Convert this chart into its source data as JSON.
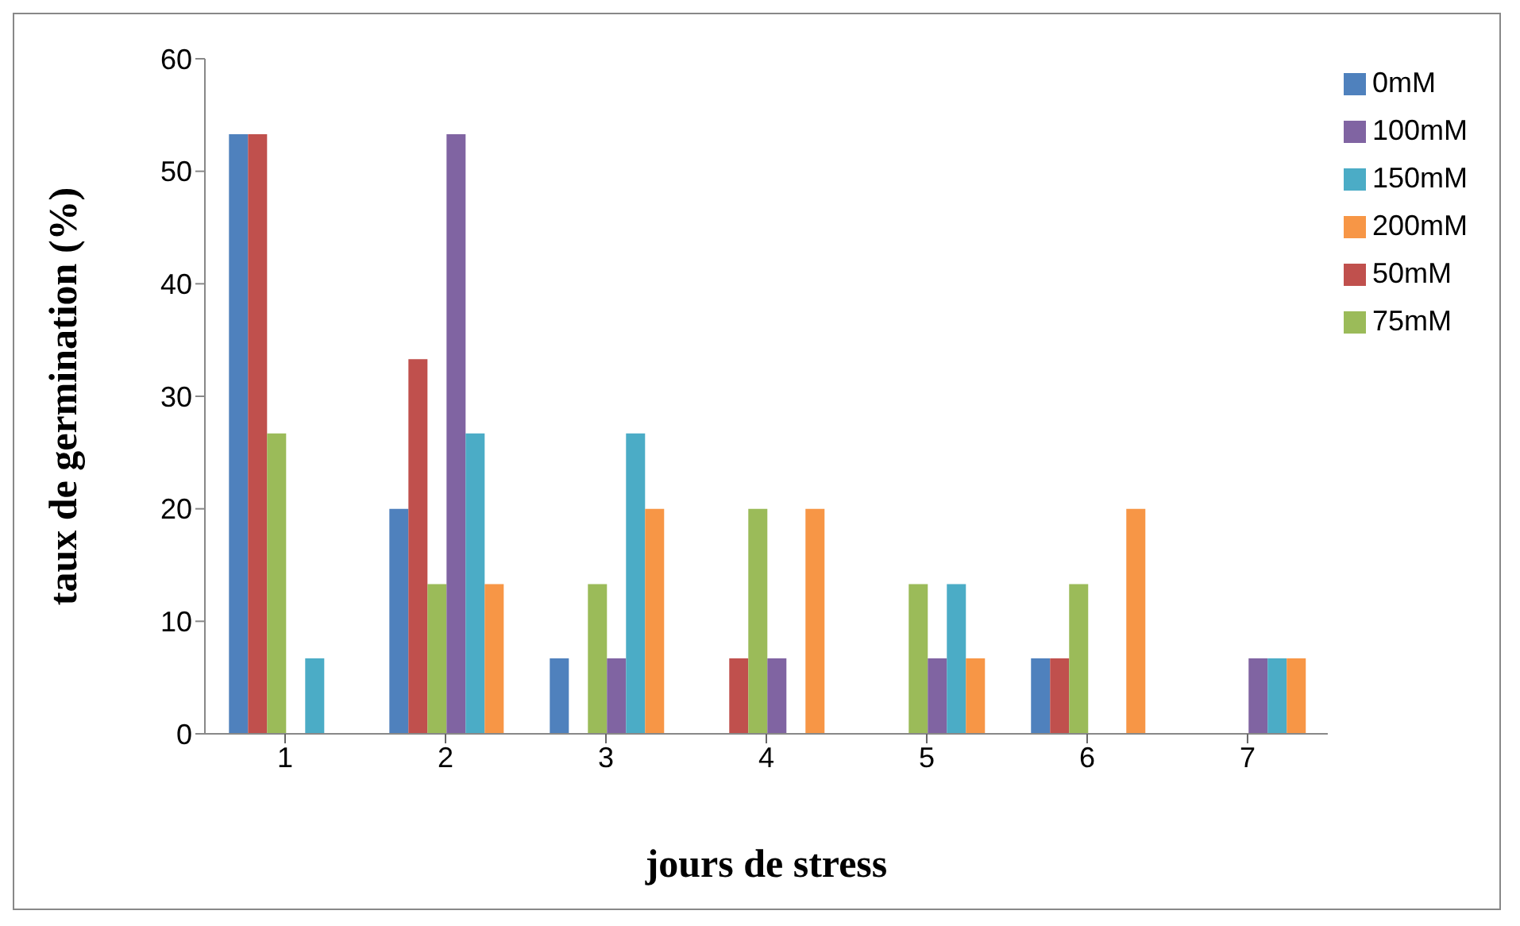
{
  "chart_data": {
    "type": "bar",
    "xlabel": "jours de stress",
    "ylabel": "taux de germination (%)",
    "categories": [
      "1",
      "2",
      "3",
      "4",
      "5",
      "6",
      "7"
    ],
    "series": [
      {
        "name": "0mM",
        "color": "#4f81bd",
        "values": [
          53.3,
          20,
          6.7,
          0,
          0,
          6.7,
          0
        ]
      },
      {
        "name": "50mM",
        "color": "#c0504d",
        "values": [
          53.3,
          33.3,
          0,
          6.7,
          0,
          6.7,
          0
        ]
      },
      {
        "name": "75mM",
        "color": "#9bbb59",
        "values": [
          26.7,
          13.3,
          13.3,
          20,
          13.3,
          13.3,
          0
        ]
      },
      {
        "name": "100mM",
        "color": "#8064a2",
        "values": [
          0,
          53.3,
          6.7,
          6.7,
          6.7,
          0,
          6.7
        ]
      },
      {
        "name": "150mM",
        "color": "#4bacc6",
        "values": [
          6.7,
          26.7,
          26.7,
          0,
          13.3,
          0,
          6.7
        ]
      },
      {
        "name": "200mM",
        "color": "#f79646",
        "values": [
          0,
          13.3,
          20,
          20,
          6.7,
          20,
          6.7
        ]
      }
    ],
    "ylim": [
      0,
      60
    ],
    "yticks": [
      0,
      10,
      20,
      30,
      40,
      50,
      60
    ],
    "grid": false,
    "legend": "right"
  }
}
